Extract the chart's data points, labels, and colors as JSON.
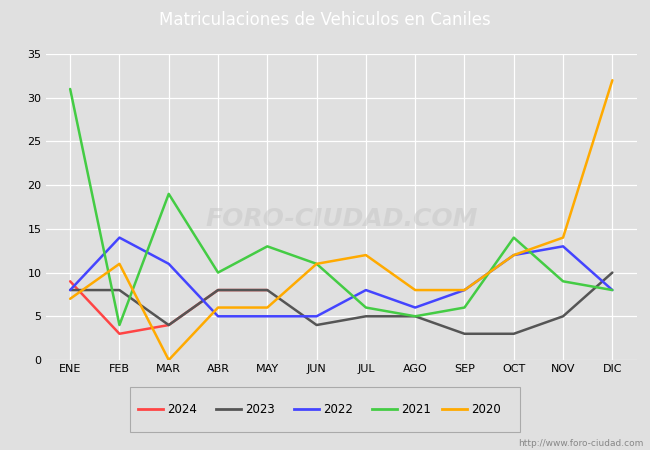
{
  "title": "Matriculaciones de Vehiculos en Caniles",
  "months": [
    "ENE",
    "FEB",
    "MAR",
    "ABR",
    "MAY",
    "JUN",
    "JUL",
    "AGO",
    "SEP",
    "OCT",
    "NOV",
    "DIC"
  ],
  "series": {
    "2024": [
      9,
      3,
      4,
      8,
      8,
      null,
      null,
      null,
      null,
      null,
      null,
      null
    ],
    "2023": [
      8,
      8,
      4,
      8,
      8,
      4,
      5,
      5,
      3,
      3,
      5,
      10
    ],
    "2022": [
      8,
      14,
      11,
      5,
      5,
      5,
      8,
      6,
      8,
      12,
      13,
      8
    ],
    "2021": [
      31,
      4,
      19,
      10,
      13,
      11,
      6,
      5,
      6,
      14,
      9,
      8
    ],
    "2020": [
      7,
      11,
      0,
      6,
      6,
      11,
      12,
      8,
      8,
      12,
      14,
      32
    ]
  },
  "colors": {
    "2024": "#ff4444",
    "2023": "#555555",
    "2022": "#4444ff",
    "2021": "#44cc44",
    "2020": "#ffaa00"
  },
  "ylim": [
    0,
    35
  ],
  "yticks": [
    0,
    5,
    10,
    15,
    20,
    25,
    30,
    35
  ],
  "fig_bg": "#e0e0e0",
  "plot_bg": "#e0e0e0",
  "title_bar_color": "#5b7fbc",
  "title_text_color": "#ffffff",
  "grid_color": "#ffffff",
  "legend_years": [
    "2024",
    "2023",
    "2022",
    "2021",
    "2020"
  ],
  "watermark_chart": "FORO-CIUDAD.COM",
  "watermark_url": "http://www.foro-ciudad.com",
  "linewidth": 1.8
}
